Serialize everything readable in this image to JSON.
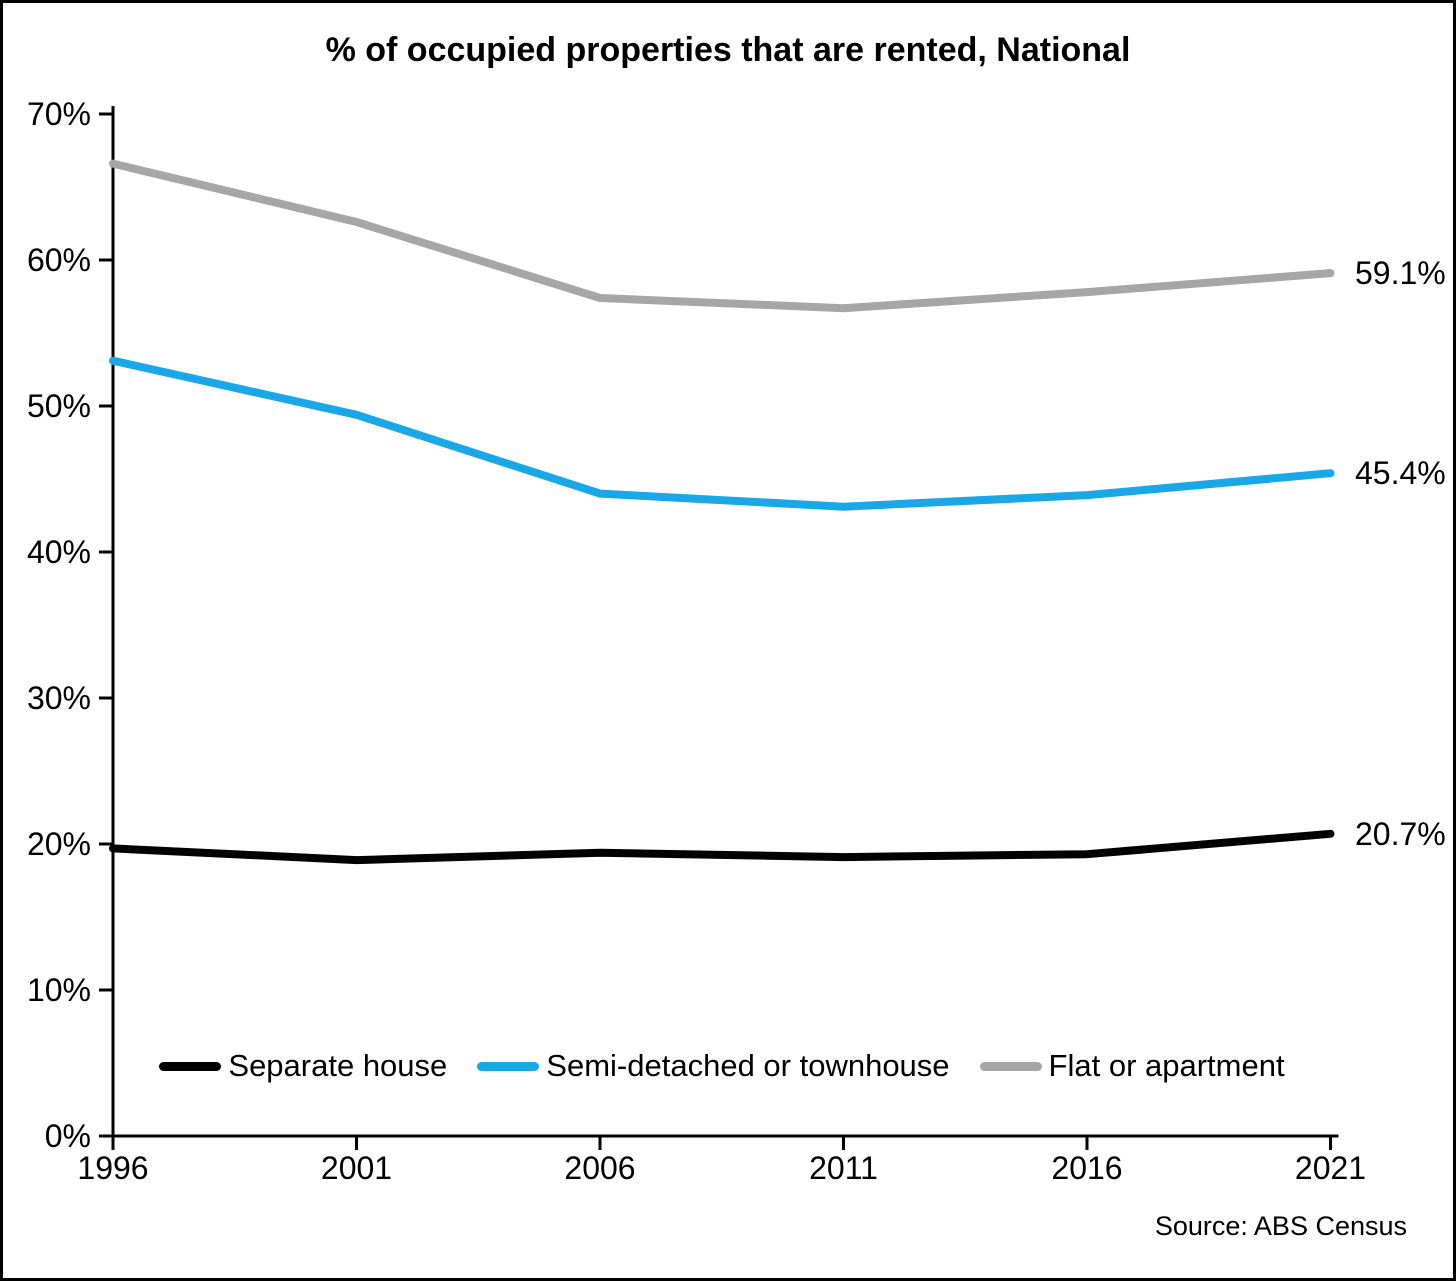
{
  "title": "% of occupied properties that are rented, National",
  "source": "Source: ABS Census",
  "chart_data": {
    "type": "line",
    "x": [
      1996,
      2001,
      2006,
      2011,
      2016,
      2021
    ],
    "x_tick_labels": [
      "1996",
      "2001",
      "2006",
      "2011",
      "2016",
      "2021"
    ],
    "y_tick_labels": [
      "0%",
      "10%",
      "20%",
      "30%",
      "40%",
      "50%",
      "60%",
      "70%"
    ],
    "y_tick_values": [
      0,
      10,
      20,
      30,
      40,
      50,
      60,
      70
    ],
    "ylim": [
      0,
      70
    ],
    "grid": false,
    "legend_position": "bottom-inside",
    "series": [
      {
        "name": "Flat or apartment",
        "color": "#a6a6a6",
        "values": [
          66.6,
          62.6,
          57.4,
          56.7,
          57.8,
          59.1
        ],
        "end_label": "59.1%"
      },
      {
        "name": "Semi-detached or townhouse",
        "color": "#1aa7e8",
        "values": [
          53.1,
          49.4,
          44.0,
          43.1,
          43.9,
          45.4
        ],
        "end_label": "45.4%"
      },
      {
        "name": "Separate house",
        "color": "#000000",
        "values": [
          19.7,
          18.9,
          19.4,
          19.1,
          19.3,
          20.7
        ],
        "end_label": "20.7%"
      }
    ],
    "legend_order": [
      2,
      1,
      0
    ],
    "axis_color": "#000000"
  }
}
